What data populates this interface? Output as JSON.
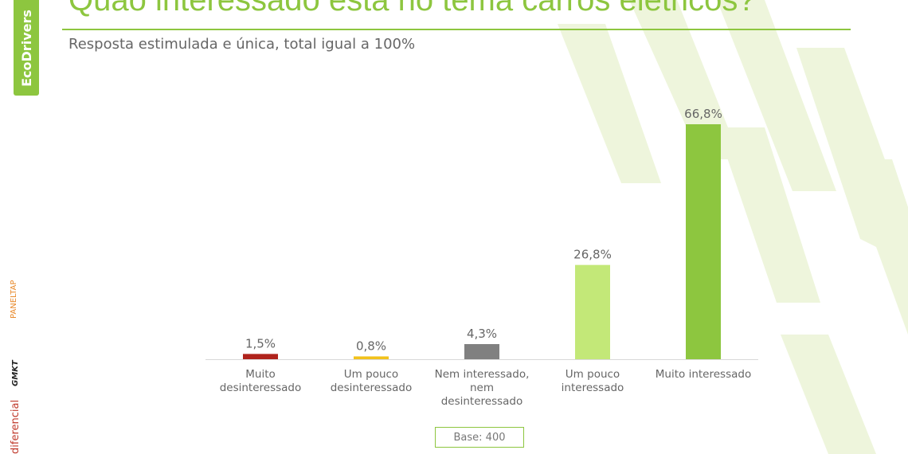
{
  "header": {
    "title": "Quão interessado está no tema carros elétricos?",
    "subtitle": "Resposta estimulada e única, total igual a 100%"
  },
  "logos": {
    "ecodrivers": "EcoDrivers",
    "paneltap": "PANELTAP",
    "gmkt": "GMKT",
    "diferencial": "diferencial"
  },
  "footer": {
    "base": "Base: 400"
  },
  "chart_data": {
    "type": "bar",
    "title": "Quão interessado está no tema carros elétricos?",
    "categories": [
      [
        "Muito",
        "desinteressado"
      ],
      [
        "Um pouco",
        "desinteressado"
      ],
      [
        "Nem interessado,",
        "nem",
        "desinteressado"
      ],
      [
        "Um pouco",
        "interessado"
      ],
      [
        "Muito interessado"
      ]
    ],
    "values": [
      1.5,
      0.8,
      4.3,
      26.8,
      66.8
    ],
    "labels": [
      "1,5%",
      "0,8%",
      "4,3%",
      "26,8%",
      "66,8%"
    ],
    "colors": [
      "#b0231c",
      "#f2c21b",
      "#808080",
      "#c3e878",
      "#8dc63f"
    ],
    "ylim": [
      0,
      70
    ],
    "grid": false
  }
}
